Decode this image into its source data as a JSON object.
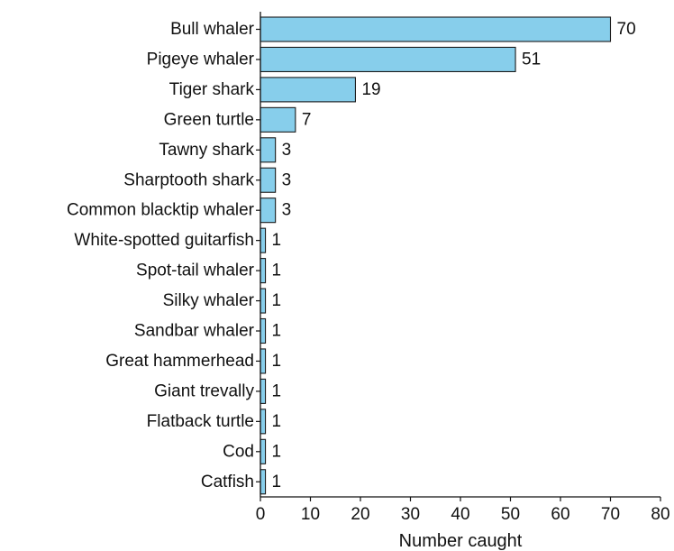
{
  "chart_data": {
    "type": "bar",
    "orientation": "horizontal",
    "categories": [
      "Bull whaler",
      "Pigeye whaler",
      "Tiger shark",
      "Green turtle",
      "Tawny shark",
      "Sharptooth shark",
      "Common blacktip whaler",
      "White-spotted guitarfish",
      "Spot-tail whaler",
      "Silky whaler",
      "Sandbar whaler",
      "Great hammerhead",
      "Giant trevally",
      "Flatback turtle",
      "Cod",
      "Catfish"
    ],
    "values": [
      70,
      51,
      19,
      7,
      3,
      3,
      3,
      1,
      1,
      1,
      1,
      1,
      1,
      1,
      1,
      1
    ],
    "data_labels": [
      "70",
      "51",
      "19",
      "7",
      "3",
      "3",
      "3",
      "1",
      "1",
      "1",
      "1",
      "1",
      "1",
      "1",
      "1",
      "1"
    ],
    "xlabel": "Number caught",
    "xlim": [
      0,
      80
    ],
    "xticks": [
      "0",
      "10",
      "20",
      "30",
      "40",
      "50",
      "60",
      "70",
      "80"
    ],
    "bar_color": "#87ceeb",
    "bar_edge_color": "#1a1a1a",
    "grid": false
  }
}
